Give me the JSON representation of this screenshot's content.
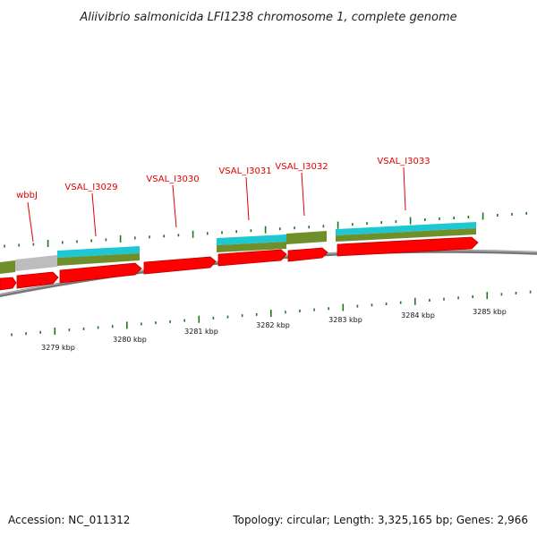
{
  "title": "Aliivibrio salmonicida LFI1238 chromosome 1, complete genome",
  "accession": "Accession: NC_011312",
  "topology": "Topology: circular; Length: 3,325,165 bp; Genes: 2,966",
  "colors": {
    "cds": "#ff0000",
    "cds_shadow": "#b80000",
    "annotation_cyan": "#1ec8d2",
    "annotation_olive": "#6f8f2a",
    "annotation_gray": "#bdbdbd",
    "backbone": "#888888",
    "tick": "#1a7a1a",
    "label": "#e00000"
  },
  "gene_labels": [
    "wbbJ",
    "VSAL_I3029",
    "VSAL_I3030",
    "VSAL_I3031",
    "VSAL_I3032",
    "VSAL_I3033"
  ],
  "kbp_labels": [
    "3279 kbp",
    "3280 kbp",
    "3281 kbp",
    "3282 kbp",
    "3283 kbp",
    "3284 kbp",
    "3285 kbp"
  ]
}
